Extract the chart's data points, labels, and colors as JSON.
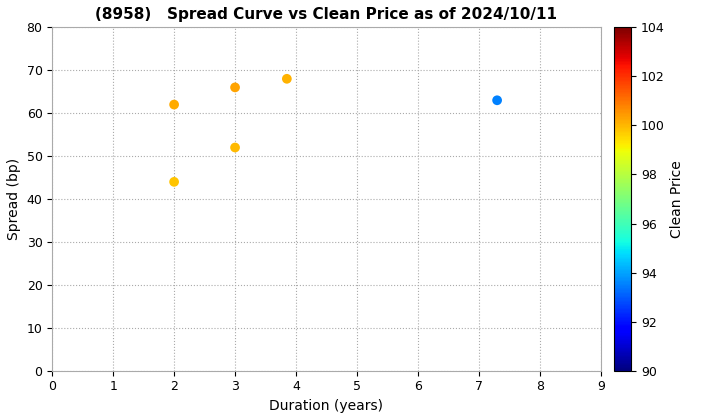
{
  "title": "(8958)   Spread Curve vs Clean Price as of 2024/10/11",
  "xlabel": "Duration (years)",
  "ylabel": "Spread (bp)",
  "colorbar_label": "Clean Price",
  "xlim": [
    0,
    9
  ],
  "ylim": [
    0,
    80
  ],
  "xticks": [
    0,
    1,
    2,
    3,
    4,
    5,
    6,
    7,
    8,
    9
  ],
  "yticks": [
    0,
    10,
    20,
    30,
    40,
    50,
    60,
    70,
    80
  ],
  "clim": [
    90,
    104
  ],
  "colorbar_ticks": [
    90,
    92,
    94,
    96,
    98,
    100,
    102,
    104
  ],
  "points": [
    {
      "duration": 2.0,
      "spread": 62.0,
      "clean_price": 100.2
    },
    {
      "duration": 2.0,
      "spread": 44.0,
      "clean_price": 99.8
    },
    {
      "duration": 3.0,
      "spread": 52.0,
      "clean_price": 100.0
    },
    {
      "duration": 3.0,
      "spread": 66.0,
      "clean_price": 100.3
    },
    {
      "duration": 3.85,
      "spread": 68.0,
      "clean_price": 100.1
    },
    {
      "duration": 7.3,
      "spread": 63.0,
      "clean_price": 93.5
    }
  ],
  "background_color": "#ffffff",
  "grid_color": "#aaaaaa",
  "grid_linestyle": ":",
  "grid_linewidth": 0.8,
  "marker_size": 7,
  "title_fontsize": 11,
  "title_fontweight": "bold",
  "axis_label_fontsize": 10,
  "tick_fontsize": 9,
  "colorbar_label_fontsize": 10,
  "figure_width": 7.2,
  "figure_height": 4.2,
  "figure_dpi": 100
}
